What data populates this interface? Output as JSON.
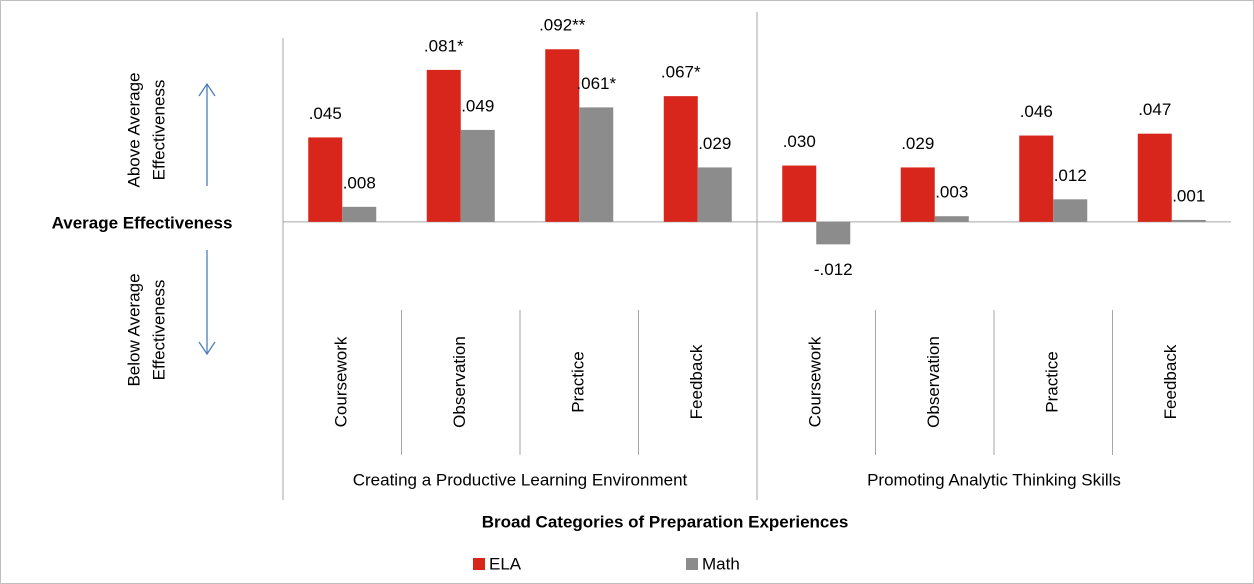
{
  "chart_data": {
    "type": "bar",
    "categories": [
      "Coursework",
      "Observation",
      "Practice",
      "Feedback",
      "Coursework",
      "Observation",
      "Practice",
      "Feedback"
    ],
    "groups": [
      "Creating a Productive Learning Environment",
      "Promoting Analytic Thinking Skills"
    ],
    "series": [
      {
        "name": "ELA",
        "color": "#d9261c",
        "values": [
          0.045,
          0.081,
          0.092,
          0.067,
          0.03,
          0.029,
          0.046,
          0.047
        ],
        "value_labels": [
          ".045",
          ".081*",
          ".092**",
          ".067*",
          ".030",
          ".029",
          ".046",
          ".047"
        ]
      },
      {
        "name": "Math",
        "color": "#8c8c8c",
        "values": [
          0.008,
          0.049,
          0.061,
          0.029,
          -0.012,
          0.003,
          0.012,
          0.001
        ],
        "value_labels": [
          ".008",
          ".049",
          ".061*",
          ".029",
          "-.012",
          ".003",
          ".012",
          ".001"
        ]
      }
    ],
    "ylim": [
      -0.047,
      0.098
    ],
    "xlabel": "Broad Categories of Preparation Experiences",
    "above_label": [
      "Above Average",
      "Effectiveness"
    ],
    "center_label": "Average Effectiveness",
    "below_label": [
      "Below Average",
      "Effectiveness"
    ]
  }
}
